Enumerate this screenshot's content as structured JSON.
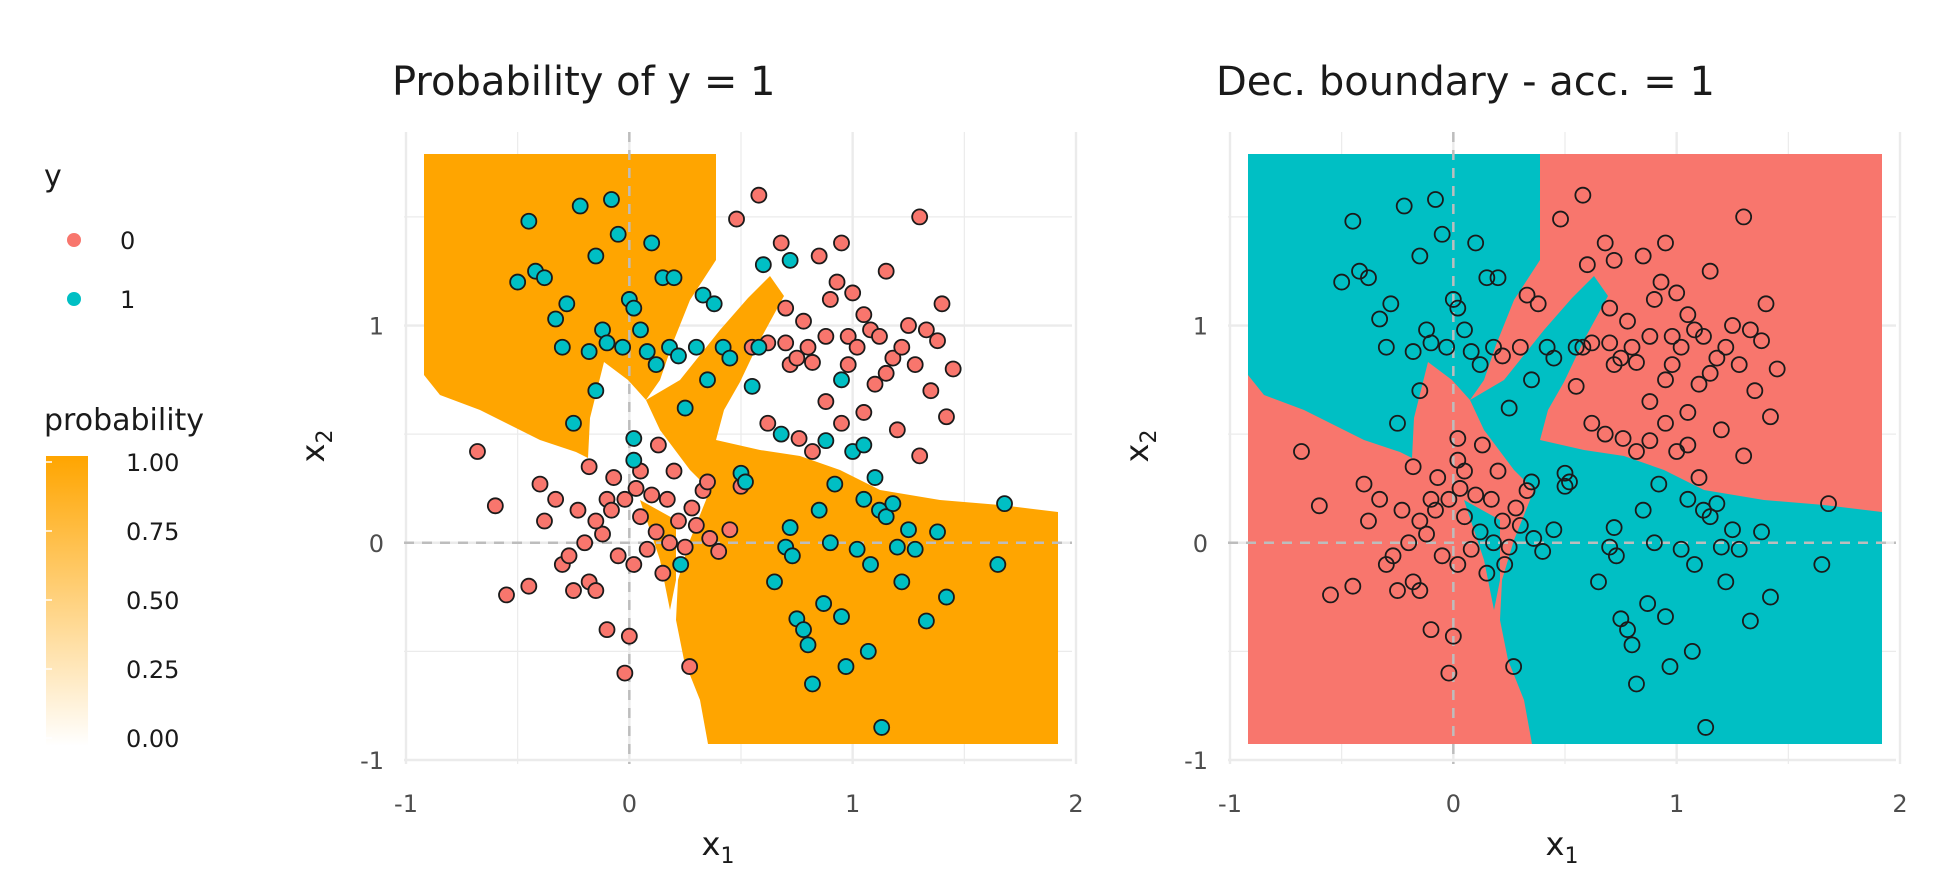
{
  "colors": {
    "class0": "#F8766D",
    "class1": "#00BFC4",
    "probability_high": "#FFA500",
    "probability_low": "#FFFFFF",
    "point_stroke": "#1a1a1a",
    "grid": "#ebebeb",
    "reference_line": "#bdbdbd"
  },
  "legend": {
    "y_title": "y",
    "y_items": [
      {
        "label": "0",
        "color": "#F8766D"
      },
      {
        "label": "1",
        "color": "#00BFC4"
      }
    ],
    "probability_title": "probability",
    "probability_ticks": [
      "1.00",
      "0.75",
      "0.50",
      "0.25",
      "0.00"
    ]
  },
  "chart_data": [
    {
      "type": "scatter",
      "title": "Probability of y = 1",
      "xlabel": "x",
      "xlabel_subscript": "1",
      "ylabel": "x",
      "ylabel_subscript": "2",
      "xlim": [
        -1,
        2
      ],
      "ylim": [
        -1,
        1.9
      ],
      "x_ticks": [
        -1,
        0,
        1,
        2
      ],
      "y_ticks": [
        -1,
        0,
        1
      ],
      "x_tick_labels": [
        "-1",
        "0",
        "1",
        "2"
      ],
      "y_tick_labels": [
        "-1",
        "0",
        "1"
      ],
      "grid": true,
      "reference_lines": {
        "x": 0,
        "y": 0,
        "style": "dashed"
      },
      "background": "fill shows the predicted probability of y = 1 (orange = 1.00, white = 0.00)",
      "point_colors": "by class y"
    },
    {
      "type": "scatter",
      "title": "Dec. boundary - acc. = 1",
      "xlabel": "x",
      "xlabel_subscript": "1",
      "ylabel": "x",
      "ylabel_subscript": "2",
      "xlim": [
        -1,
        2
      ],
      "ylim": [
        -1,
        1.9
      ],
      "x_ticks": [
        -1,
        0,
        1,
        2
      ],
      "y_ticks": [
        -1,
        0,
        1
      ],
      "x_tick_labels": [
        "-1",
        "0",
        "1",
        "2"
      ],
      "y_tick_labels": [
        "-1",
        "0",
        "1"
      ],
      "grid": true,
      "reference_lines": {
        "x": 0,
        "y": 0,
        "style": "dashed"
      },
      "background": "fill shows the predicted class (red = 0, teal = 1)",
      "point_colors": "hollow markers"
    }
  ],
  "points_class0": [
    [
      -0.68,
      0.42
    ],
    [
      -0.6,
      0.17
    ],
    [
      -0.55,
      -0.24
    ],
    [
      -0.45,
      -0.2
    ],
    [
      -0.4,
      0.27
    ],
    [
      -0.38,
      0.1
    ],
    [
      -0.33,
      0.2
    ],
    [
      -0.3,
      -0.1
    ],
    [
      -0.27,
      -0.06
    ],
    [
      -0.23,
      0.15
    ],
    [
      -0.2,
      0.0
    ],
    [
      -0.18,
      -0.18
    ],
    [
      -0.15,
      -0.22
    ],
    [
      -0.12,
      0.04
    ],
    [
      -0.1,
      0.2
    ],
    [
      -0.07,
      0.3
    ],
    [
      -0.05,
      -0.06
    ],
    [
      -0.02,
      0.2
    ],
    [
      0.02,
      -0.1
    ],
    [
      0.05,
      0.12
    ],
    [
      0.08,
      -0.03
    ],
    [
      0.1,
      0.22
    ],
    [
      0.12,
      0.05
    ],
    [
      0.15,
      -0.14
    ],
    [
      0.17,
      0.2
    ],
    [
      0.2,
      0.33
    ],
    [
      0.22,
      0.1
    ],
    [
      0.25,
      -0.02
    ],
    [
      0.28,
      0.16
    ],
    [
      0.3,
      0.08
    ],
    [
      0.33,
      0.24
    ],
    [
      0.36,
      0.02
    ],
    [
      0.4,
      -0.04
    ],
    [
      0.45,
      0.06
    ],
    [
      -0.1,
      -0.4
    ],
    [
      -0.02,
      -0.6
    ],
    [
      0.0,
      -0.43
    ],
    [
      0.27,
      -0.57
    ],
    [
      -0.15,
      0.1
    ],
    [
      -0.25,
      -0.22
    ],
    [
      -0.18,
      0.35
    ],
    [
      0.13,
      0.45
    ],
    [
      0.05,
      0.33
    ],
    [
      -0.08,
      0.15
    ],
    [
      0.03,
      0.25
    ],
    [
      0.18,
      0.0
    ],
    [
      0.35,
      0.28
    ],
    [
      0.5,
      0.26
    ],
    [
      0.48,
      1.49
    ],
    [
      0.58,
      1.6
    ],
    [
      0.55,
      0.9
    ],
    [
      0.62,
      0.92
    ],
    [
      0.68,
      1.38
    ],
    [
      0.72,
      0.82
    ],
    [
      0.75,
      0.85
    ],
    [
      0.78,
      1.02
    ],
    [
      0.8,
      0.9
    ],
    [
      0.82,
      0.83
    ],
    [
      0.85,
      1.32
    ],
    [
      0.88,
      0.95
    ],
    [
      0.9,
      1.12
    ],
    [
      0.93,
      1.2
    ],
    [
      0.95,
      1.38
    ],
    [
      0.98,
      0.95
    ],
    [
      1.0,
      1.15
    ],
    [
      1.02,
      0.9
    ],
    [
      1.05,
      1.05
    ],
    [
      1.08,
      0.98
    ],
    [
      1.1,
      0.73
    ],
    [
      1.12,
      0.95
    ],
    [
      1.15,
      1.25
    ],
    [
      1.18,
      0.85
    ],
    [
      1.22,
      0.9
    ],
    [
      1.25,
      1.0
    ],
    [
      1.28,
      0.82
    ],
    [
      1.3,
      1.5
    ],
    [
      1.33,
      0.98
    ],
    [
      1.35,
      0.7
    ],
    [
      1.38,
      0.93
    ],
    [
      1.4,
      1.1
    ],
    [
      1.42,
      0.58
    ],
    [
      1.45,
      0.8
    ],
    [
      0.7,
      0.92
    ],
    [
      0.82,
      0.42
    ],
    [
      0.95,
      0.55
    ],
    [
      1.05,
      0.6
    ],
    [
      1.2,
      0.52
    ],
    [
      1.3,
      0.4
    ],
    [
      0.88,
      0.65
    ],
    [
      1.15,
      0.78
    ],
    [
      0.7,
      1.08
    ],
    [
      0.62,
      0.55
    ],
    [
      0.76,
      0.48
    ],
    [
      0.98,
      0.82
    ]
  ],
  "points_class1": [
    [
      -0.5,
      1.2
    ],
    [
      -0.45,
      1.48
    ],
    [
      -0.42,
      1.25
    ],
    [
      -0.38,
      1.22
    ],
    [
      -0.33,
      1.03
    ],
    [
      -0.3,
      0.9
    ],
    [
      -0.28,
      1.1
    ],
    [
      -0.25,
      0.55
    ],
    [
      -0.22,
      1.55
    ],
    [
      -0.18,
      0.88
    ],
    [
      -0.15,
      1.32
    ],
    [
      -0.15,
      0.7
    ],
    [
      -0.12,
      0.98
    ],
    [
      -0.1,
      0.92
    ],
    [
      -0.08,
      1.58
    ],
    [
      -0.05,
      1.42
    ],
    [
      -0.03,
      0.9
    ],
    [
      0.0,
      1.12
    ],
    [
      0.02,
      1.08
    ],
    [
      0.05,
      0.98
    ],
    [
      0.08,
      0.88
    ],
    [
      0.1,
      1.38
    ],
    [
      0.12,
      0.82
    ],
    [
      0.15,
      1.22
    ],
    [
      0.18,
      0.9
    ],
    [
      0.2,
      1.22
    ],
    [
      0.22,
      0.86
    ],
    [
      0.25,
      0.62
    ],
    [
      0.3,
      0.9
    ],
    [
      0.33,
      1.14
    ],
    [
      0.35,
      0.75
    ],
    [
      0.38,
      1.1
    ],
    [
      0.02,
      0.48
    ],
    [
      0.02,
      0.38
    ],
    [
      0.5,
      0.32
    ],
    [
      0.52,
      0.28
    ],
    [
      0.55,
      0.72
    ],
    [
      0.58,
      0.9
    ],
    [
      0.6,
      1.28
    ],
    [
      0.65,
      -0.18
    ],
    [
      0.68,
      0.5
    ],
    [
      0.7,
      -0.02
    ],
    [
      0.72,
      0.07
    ],
    [
      0.73,
      -0.06
    ],
    [
      0.75,
      -0.35
    ],
    [
      0.78,
      -0.4
    ],
    [
      0.8,
      -0.47
    ],
    [
      0.82,
      -0.65
    ],
    [
      0.85,
      0.15
    ],
    [
      0.87,
      -0.28
    ],
    [
      0.88,
      0.47
    ],
    [
      0.9,
      0.0
    ],
    [
      0.92,
      0.27
    ],
    [
      0.95,
      -0.34
    ],
    [
      0.97,
      -0.57
    ],
    [
      1.0,
      0.42
    ],
    [
      1.02,
      -0.03
    ],
    [
      1.05,
      0.2
    ],
    [
      1.07,
      -0.5
    ],
    [
      1.08,
      -0.1
    ],
    [
      1.1,
      0.3
    ],
    [
      1.12,
      0.15
    ],
    [
      1.13,
      -0.85
    ],
    [
      1.15,
      0.12
    ],
    [
      1.18,
      0.18
    ],
    [
      1.2,
      -0.02
    ],
    [
      1.22,
      -0.18
    ],
    [
      1.25,
      0.06
    ],
    [
      1.28,
      -0.03
    ],
    [
      1.33,
      -0.36
    ],
    [
      1.38,
      0.05
    ],
    [
      1.42,
      -0.25
    ],
    [
      1.65,
      -0.1
    ],
    [
      1.68,
      0.18
    ],
    [
      0.23,
      -0.1
    ],
    [
      0.72,
      1.3
    ],
    [
      0.42,
      0.9
    ],
    [
      0.45,
      0.85
    ],
    [
      0.95,
      0.75
    ],
    [
      1.05,
      0.45
    ]
  ]
}
